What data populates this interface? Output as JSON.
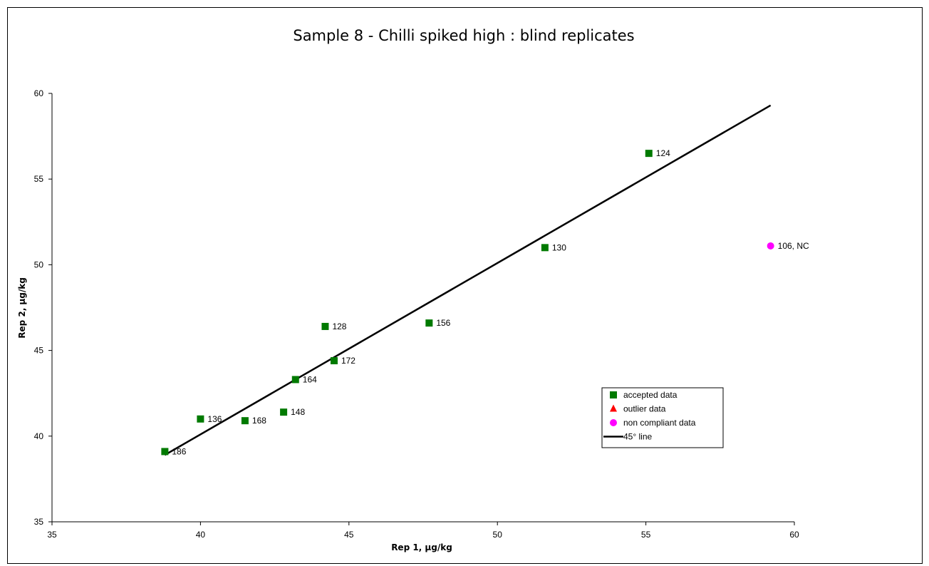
{
  "chart_data": {
    "type": "scatter",
    "title": "Sample 8 - Chilli spiked high : blind replicates",
    "xlabel": "Rep 1,  µg/kg",
    "ylabel": "Rep 2,  µg/kg",
    "xlim": [
      35,
      60
    ],
    "ylim": [
      35,
      60
    ],
    "xticks": [
      35,
      40,
      45,
      50,
      55,
      60
    ],
    "yticks": [
      35,
      40,
      45,
      50,
      55,
      60
    ],
    "grid": false,
    "legend_position": "lower-right",
    "series": [
      {
        "name": "accepted data",
        "marker": "square",
        "color": "#007A00",
        "points": [
          {
            "x": 38.8,
            "y": 39.1,
            "label": "186"
          },
          {
            "x": 40.0,
            "y": 41.0,
            "label": "136"
          },
          {
            "x": 41.5,
            "y": 40.9,
            "label": "168"
          },
          {
            "x": 42.8,
            "y": 41.4,
            "label": "148"
          },
          {
            "x": 43.2,
            "y": 43.3,
            "label": "164"
          },
          {
            "x": 44.2,
            "y": 46.4,
            "label": "128"
          },
          {
            "x": 44.5,
            "y": 44.4,
            "label": "172"
          },
          {
            "x": 47.7,
            "y": 46.6,
            "label": "156"
          },
          {
            "x": 51.6,
            "y": 51.0,
            "label": "130"
          },
          {
            "x": 55.1,
            "y": 56.5,
            "label": "124"
          }
        ]
      },
      {
        "name": "outlier data",
        "marker": "triangle",
        "color": "#FF0000",
        "points": []
      },
      {
        "name": "non compliant data",
        "marker": "circle",
        "color": "#FF00FF",
        "points": [
          {
            "x": 59.2,
            "y": 51.1,
            "label": "106, NC"
          }
        ]
      },
      {
        "name": "45° line",
        "marker": "line",
        "color": "#000000",
        "points": [
          {
            "x": 38.8,
            "y": 38.9
          },
          {
            "x": 59.2,
            "y": 59.3
          }
        ]
      }
    ]
  }
}
